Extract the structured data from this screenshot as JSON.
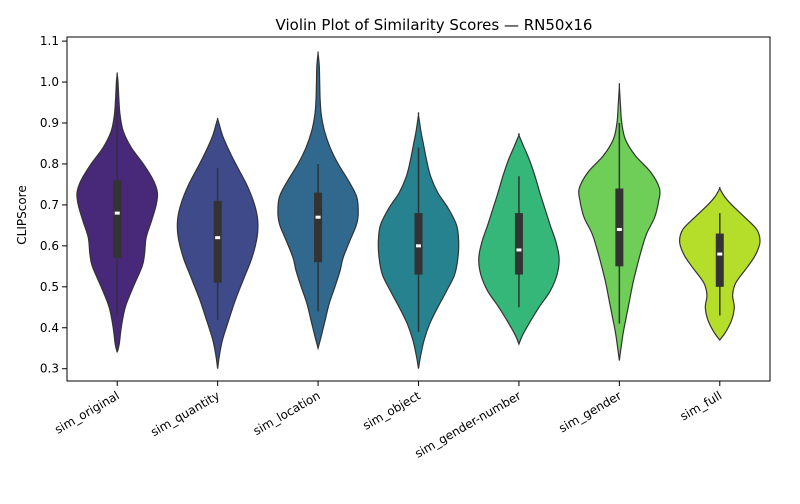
{
  "chart_data": {
    "type": "violin",
    "title": "Violin Plot of Similarity Scores — RN50x16",
    "xlabel": "",
    "ylabel": "CLIPScore",
    "ylim": [
      0.27,
      1.11
    ],
    "yticks": [
      "0.3",
      "0.4",
      "0.5",
      "0.6",
      "0.7",
      "0.8",
      "0.9",
      "1.0",
      "1.1"
    ],
    "grid": false,
    "categories": [
      "sim_original",
      "sim_quantity",
      "sim_location",
      "sim_object",
      "sim_gender-number",
      "sim_gender",
      "sim_full"
    ],
    "colors": [
      "#482878",
      "#3e4a89",
      "#31688e",
      "#26828e",
      "#35b779",
      "#6ece58",
      "#b5de2b"
    ],
    "violins": [
      {
        "name": "sim_original",
        "range": [
          0.34,
          1.02
        ],
        "box": {
          "whisker_low": 0.43,
          "q1": 0.57,
          "median": 0.68,
          "q3": 0.76,
          "whisker_high": 0.94
        },
        "profile": [
          [
            0.34,
            0.0
          ],
          [
            0.36,
            0.05
          ],
          [
            0.4,
            0.1
          ],
          [
            0.45,
            0.2
          ],
          [
            0.5,
            0.4
          ],
          [
            0.55,
            0.62
          ],
          [
            0.58,
            0.68
          ],
          [
            0.62,
            0.72
          ],
          [
            0.66,
            0.85
          ],
          [
            0.7,
            0.97
          ],
          [
            0.73,
            1.0
          ],
          [
            0.76,
            0.9
          ],
          [
            0.8,
            0.65
          ],
          [
            0.84,
            0.35
          ],
          [
            0.88,
            0.15
          ],
          [
            0.92,
            0.07
          ],
          [
            0.96,
            0.04
          ],
          [
            1.0,
            0.02
          ],
          [
            1.02,
            0.0
          ]
        ]
      },
      {
        "name": "sim_quantity",
        "range": [
          0.3,
          0.91
        ],
        "box": {
          "whisker_low": 0.42,
          "q1": 0.51,
          "median": 0.62,
          "q3": 0.71,
          "whisker_high": 0.79
        },
        "profile": [
          [
            0.3,
            0.0
          ],
          [
            0.33,
            0.04
          ],
          [
            0.37,
            0.12
          ],
          [
            0.42,
            0.28
          ],
          [
            0.47,
            0.45
          ],
          [
            0.52,
            0.65
          ],
          [
            0.57,
            0.85
          ],
          [
            0.62,
            0.98
          ],
          [
            0.66,
            1.0
          ],
          [
            0.7,
            0.92
          ],
          [
            0.75,
            0.72
          ],
          [
            0.8,
            0.45
          ],
          [
            0.84,
            0.25
          ],
          [
            0.87,
            0.12
          ],
          [
            0.9,
            0.03
          ],
          [
            0.91,
            0.0
          ]
        ]
      },
      {
        "name": "sim_location",
        "range": [
          0.35,
          1.07
        ],
        "box": {
          "whisker_low": 0.44,
          "q1": 0.56,
          "median": 0.67,
          "q3": 0.73,
          "whisker_high": 0.8
        },
        "profile": [
          [
            0.35,
            0.0
          ],
          [
            0.38,
            0.08
          ],
          [
            0.42,
            0.18
          ],
          [
            0.46,
            0.28
          ],
          [
            0.5,
            0.42
          ],
          [
            0.54,
            0.55
          ],
          [
            0.57,
            0.62
          ],
          [
            0.61,
            0.78
          ],
          [
            0.65,
            0.95
          ],
          [
            0.68,
            1.0
          ],
          [
            0.72,
            0.96
          ],
          [
            0.76,
            0.75
          ],
          [
            0.8,
            0.5
          ],
          [
            0.84,
            0.3
          ],
          [
            0.88,
            0.16
          ],
          [
            0.92,
            0.08
          ],
          [
            0.96,
            0.05
          ],
          [
            1.0,
            0.04
          ],
          [
            1.04,
            0.03
          ],
          [
            1.07,
            0.0
          ]
        ]
      },
      {
        "name": "sim_object",
        "range": [
          0.3,
          0.92
        ],
        "box": {
          "whisker_low": 0.39,
          "q1": 0.53,
          "median": 0.6,
          "q3": 0.68,
          "whisker_high": 0.84
        },
        "profile": [
          [
            0.3,
            0.0
          ],
          [
            0.33,
            0.05
          ],
          [
            0.37,
            0.14
          ],
          [
            0.41,
            0.28
          ],
          [
            0.45,
            0.48
          ],
          [
            0.49,
            0.7
          ],
          [
            0.53,
            0.9
          ],
          [
            0.57,
            0.98
          ],
          [
            0.61,
            1.0
          ],
          [
            0.65,
            0.95
          ],
          [
            0.69,
            0.75
          ],
          [
            0.73,
            0.48
          ],
          [
            0.77,
            0.3
          ],
          [
            0.81,
            0.2
          ],
          [
            0.85,
            0.12
          ],
          [
            0.88,
            0.06
          ],
          [
            0.92,
            0.0
          ]
        ]
      },
      {
        "name": "sim_gender-number",
        "range": [
          0.36,
          0.87
        ],
        "box": {
          "whisker_low": 0.45,
          "q1": 0.53,
          "median": 0.59,
          "q3": 0.68,
          "whisker_high": 0.77
        },
        "profile": [
          [
            0.36,
            0.0
          ],
          [
            0.38,
            0.08
          ],
          [
            0.41,
            0.25
          ],
          [
            0.45,
            0.5
          ],
          [
            0.49,
            0.78
          ],
          [
            0.53,
            0.95
          ],
          [
            0.57,
            1.0
          ],
          [
            0.61,
            0.92
          ],
          [
            0.65,
            0.78
          ],
          [
            0.69,
            0.65
          ],
          [
            0.73,
            0.52
          ],
          [
            0.77,
            0.4
          ],
          [
            0.81,
            0.26
          ],
          [
            0.84,
            0.13
          ],
          [
            0.87,
            0.0
          ]
        ]
      },
      {
        "name": "sim_gender",
        "range": [
          0.32,
          0.99
        ],
        "box": {
          "whisker_low": 0.41,
          "q1": 0.55,
          "median": 0.64,
          "q3": 0.74,
          "whisker_high": 0.9
        },
        "profile": [
          [
            0.32,
            0.0
          ],
          [
            0.35,
            0.04
          ],
          [
            0.39,
            0.1
          ],
          [
            0.43,
            0.18
          ],
          [
            0.47,
            0.26
          ],
          [
            0.51,
            0.34
          ],
          [
            0.55,
            0.44
          ],
          [
            0.59,
            0.55
          ],
          [
            0.63,
            0.68
          ],
          [
            0.67,
            0.88
          ],
          [
            0.71,
            0.98
          ],
          [
            0.74,
            1.0
          ],
          [
            0.78,
            0.78
          ],
          [
            0.82,
            0.4
          ],
          [
            0.86,
            0.15
          ],
          [
            0.9,
            0.06
          ],
          [
            0.94,
            0.03
          ],
          [
            0.99,
            0.0
          ]
        ]
      },
      {
        "name": "sim_full",
        "range": [
          0.37,
          0.74
        ],
        "box": {
          "whisker_low": 0.43,
          "q1": 0.5,
          "median": 0.58,
          "q3": 0.63,
          "whisker_high": 0.68
        },
        "profile": [
          [
            0.37,
            0.0
          ],
          [
            0.39,
            0.15
          ],
          [
            0.42,
            0.3
          ],
          [
            0.45,
            0.36
          ],
          [
            0.48,
            0.32
          ],
          [
            0.51,
            0.4
          ],
          [
            0.55,
            0.7
          ],
          [
            0.58,
            0.9
          ],
          [
            0.61,
            1.0
          ],
          [
            0.64,
            0.92
          ],
          [
            0.67,
            0.62
          ],
          [
            0.7,
            0.3
          ],
          [
            0.72,
            0.12
          ],
          [
            0.74,
            0.0
          ]
        ]
      }
    ]
  }
}
